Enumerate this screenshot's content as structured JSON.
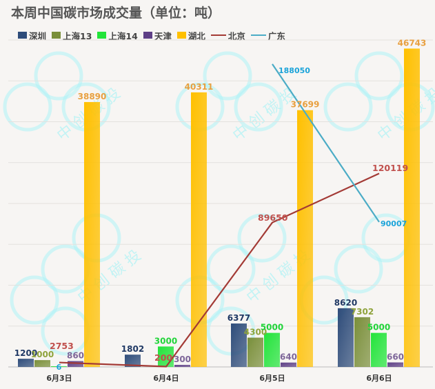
{
  "title": "本周中国碳市场成交量（单位：吨）",
  "watermark_text": "中 创 碳 投",
  "chart_data": {
    "type": "bar",
    "title": "本周中国碳市场成交量（单位：吨）",
    "categories": [
      "6月3日",
      "6月4日",
      "6月5日",
      "6月6日"
    ],
    "bar_axis_max": 48000,
    "line_axis_max": 203000,
    "legend_position": "top",
    "grid": true,
    "series": [
      {
        "name": "深圳",
        "type": "bar",
        "color": "#2e4c7a",
        "label_color": "#1f3864",
        "values": [
          1200,
          1802,
          6377,
          8620
        ]
      },
      {
        "name": "上海13",
        "type": "bar",
        "color": "#7a8f3a",
        "label_color": "#8fa33c",
        "values": [
          1000,
          null,
          4300,
          7302
        ]
      },
      {
        "name": "上海14",
        "type": "bar",
        "color": "#22e43a",
        "label_color": "#22d43a",
        "values": [
          6,
          3000,
          5000,
          5000
        ]
      },
      {
        "name": "天津",
        "type": "bar",
        "color": "#5e3f86",
        "label_color": "#7e6699",
        "values": [
          860,
          300,
          640,
          660
        ]
      },
      {
        "name": "湖北",
        "type": "bar",
        "color": "#ffc000",
        "label_color": "#e8a040",
        "values": [
          38890,
          40311,
          37699,
          46743
        ]
      },
      {
        "name": "北京",
        "type": "line",
        "color": "#a33a35",
        "label_color": "#c0504d",
        "values": [
          2753,
          200,
          89650,
          120119
        ]
      },
      {
        "name": "广东",
        "type": "line",
        "color": "#4bacc6",
        "label_color": "#1aa3d9",
        "values": [
          null,
          null,
          188050,
          90007
        ]
      }
    ]
  }
}
